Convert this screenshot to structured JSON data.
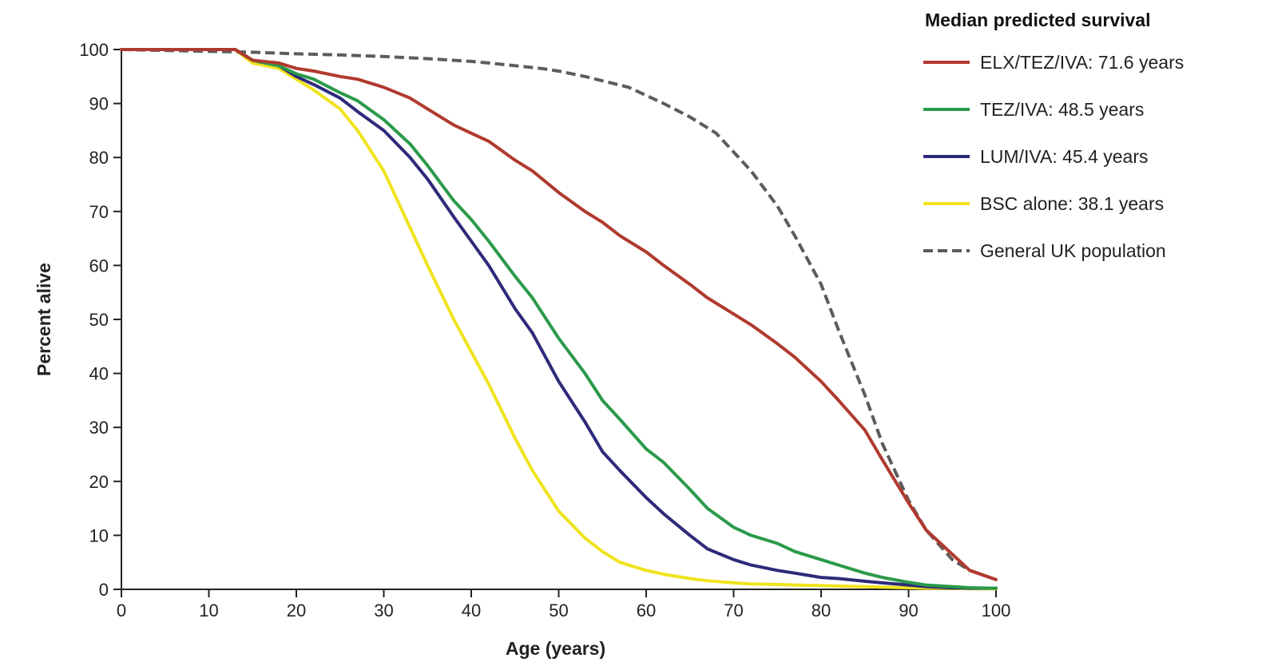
{
  "chart_data": {
    "type": "line",
    "xlabel": "Age (years)",
    "ylabel": "Percent alive",
    "xlim": [
      0,
      100
    ],
    "ylim": [
      0,
      100
    ],
    "xticks": [
      0,
      10,
      20,
      30,
      40,
      50,
      60,
      70,
      80,
      90,
      100
    ],
    "yticks": [
      0,
      10,
      20,
      30,
      40,
      50,
      60,
      70,
      80,
      90,
      100
    ],
    "grid": false,
    "legend_title": "Median predicted survival",
    "legend_position": "top-right",
    "series": [
      {
        "name": "ELX/TEZ/IVA: 71.6 years",
        "color": "#b03a2e",
        "dash": "solid",
        "x": [
          0,
          13,
          15,
          18,
          20,
          22,
          25,
          27,
          30,
          33,
          35,
          38,
          40,
          42,
          45,
          47,
          50,
          53,
          55,
          57,
          60,
          62,
          65,
          67,
          70,
          72,
          75,
          77,
          80,
          82,
          85,
          87,
          90,
          92,
          95,
          97,
          100
        ],
        "y": [
          100,
          100,
          98,
          97.5,
          96.5,
          96,
          95,
          94.5,
          93,
          91,
          89,
          86,
          84.5,
          83,
          79.5,
          77.5,
          73.5,
          70,
          68,
          65.5,
          62.5,
          60,
          56.5,
          54,
          51,
          49,
          45.5,
          43,
          38.5,
          35,
          29.5,
          24,
          16,
          11,
          6.5,
          3.5,
          1.8
        ]
      },
      {
        "name": "TEZ/IVA: 48.5 years",
        "color": "#2b9a4a",
        "dash": "solid",
        "x": [
          0,
          13,
          15,
          18,
          20,
          22,
          25,
          27,
          30,
          33,
          35,
          38,
          40,
          42,
          45,
          47,
          50,
          53,
          55,
          57,
          60,
          62,
          65,
          67,
          70,
          72,
          75,
          77,
          80,
          82,
          85,
          87,
          90,
          92,
          95,
          97,
          100
        ],
        "y": [
          100,
          100,
          98,
          97,
          95.5,
          94.5,
          92,
          90.5,
          87,
          82.5,
          78.5,
          72,
          68.5,
          64.5,
          58,
          54,
          46.5,
          40,
          35,
          31.5,
          26,
          23.5,
          18.5,
          15,
          11.5,
          10,
          8.5,
          7,
          5.5,
          4.5,
          3,
          2.2,
          1.3,
          0.8,
          0.5,
          0.3,
          0.2
        ]
      },
      {
        "name": "LUM/IVA: 45.4 years",
        "color": "#2e2a7a",
        "dash": "solid",
        "x": [
          0,
          13,
          15,
          18,
          20,
          22,
          25,
          27,
          30,
          33,
          35,
          38,
          40,
          42,
          45,
          47,
          50,
          53,
          55,
          57,
          60,
          62,
          65,
          67,
          70,
          72,
          75,
          77,
          80,
          82,
          85,
          87,
          90,
          92,
          95,
          97,
          100
        ],
        "y": [
          100,
          100,
          98,
          97,
          95,
          93.5,
          91,
          88.5,
          85,
          80,
          76,
          69,
          64.5,
          60,
          52,
          47.5,
          38.5,
          31,
          25.5,
          22,
          17,
          14,
          10,
          7.5,
          5.5,
          4.5,
          3.5,
          3,
          2.2,
          2,
          1.5,
          1.2,
          0.8,
          0.5,
          0.3,
          0.2,
          0.2
        ]
      },
      {
        "name": "BSC alone: 38.1 years",
        "color": "#f0e31e",
        "dash": "solid",
        "x": [
          0,
          13,
          15,
          18,
          20,
          22,
          25,
          27,
          30,
          33,
          35,
          38,
          40,
          42,
          45,
          47,
          50,
          53,
          55,
          57,
          60,
          62,
          65,
          67,
          70,
          72,
          75,
          77,
          80,
          82,
          85,
          87,
          90,
          92,
          95,
          97,
          100
        ],
        "y": [
          100,
          100,
          97.5,
          96.5,
          94.5,
          92.5,
          89,
          85,
          77.5,
          67,
          60,
          50,
          44,
          38,
          28,
          22,
          14.5,
          9.5,
          7,
          5,
          3.5,
          2.8,
          2,
          1.6,
          1.2,
          1,
          0.9,
          0.8,
          0.7,
          0.6,
          0.5,
          0.4,
          0.3,
          0.2,
          0.2,
          0.1,
          0.1
        ]
      },
      {
        "name": "General UK population",
        "color": "#5c5c5c",
        "dash": "dashed",
        "x": [
          0,
          15,
          20,
          25,
          30,
          35,
          40,
          42,
          45,
          48,
          50,
          53,
          55,
          58,
          60,
          62,
          65,
          68,
          70,
          72,
          75,
          77,
          80,
          82,
          85,
          87,
          90,
          92,
          95,
          97,
          100
        ],
        "y": [
          100,
          99.5,
          99.2,
          99,
          98.7,
          98.3,
          97.8,
          97.5,
          97,
          96.5,
          96,
          95,
          94.2,
          93,
          91.5,
          90,
          87.5,
          84.5,
          81,
          77.5,
          71,
          65.5,
          56.5,
          48,
          36,
          27,
          16.5,
          11,
          5.5,
          3.5,
          1.8
        ]
      }
    ]
  }
}
